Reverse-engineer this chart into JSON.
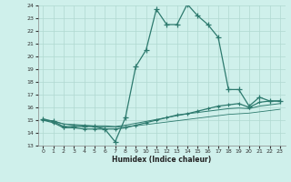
{
  "xlabel": "Humidex (Indice chaleur)",
  "xlim": [
    -0.5,
    23.5
  ],
  "ylim": [
    13,
    24
  ],
  "yticks": [
    13,
    14,
    15,
    16,
    17,
    18,
    19,
    20,
    21,
    22,
    23,
    24
  ],
  "xticks": [
    0,
    1,
    2,
    3,
    4,
    5,
    6,
    7,
    8,
    9,
    10,
    11,
    12,
    13,
    14,
    15,
    16,
    17,
    18,
    19,
    20,
    21,
    22,
    23
  ],
  "bg_color": "#cff0eb",
  "grid_color": "#b0d9d0",
  "line_color": "#2d7a6e",
  "line1_x": [
    0,
    1,
    2,
    3,
    4,
    5,
    6,
    7,
    8,
    9,
    10,
    11,
    12,
    13,
    14,
    15,
    16,
    17,
    18,
    19,
    20,
    21,
    22,
    23
  ],
  "line1_y": [
    15.1,
    14.9,
    14.5,
    14.5,
    14.5,
    14.5,
    14.3,
    13.3,
    15.2,
    19.2,
    20.5,
    23.7,
    22.5,
    22.5,
    24.1,
    23.2,
    22.5,
    21.5,
    17.4,
    17.4,
    16.1,
    16.8,
    16.5,
    16.5
  ],
  "line2_x": [
    0,
    1,
    2,
    3,
    4,
    5,
    6,
    7,
    8,
    9,
    10,
    11,
    12,
    13,
    14,
    15,
    16,
    17,
    18,
    19,
    20,
    21,
    22,
    23
  ],
  "line2_y": [
    15.0,
    14.8,
    14.4,
    14.4,
    14.3,
    14.3,
    14.3,
    14.3,
    14.4,
    14.6,
    14.8,
    15.0,
    15.2,
    15.4,
    15.5,
    15.7,
    15.9,
    16.1,
    16.2,
    16.3,
    16.0,
    16.4,
    16.5,
    16.5
  ],
  "line3_x": [
    0,
    1,
    2,
    3,
    4,
    5,
    6,
    7,
    8,
    9,
    10,
    11,
    12,
    13,
    14,
    15,
    16,
    17,
    18,
    19,
    20,
    21,
    22,
    23
  ],
  "line3_y": [
    15.0,
    14.95,
    14.7,
    14.65,
    14.6,
    14.55,
    14.55,
    14.5,
    14.6,
    14.75,
    14.9,
    15.05,
    15.2,
    15.35,
    15.5,
    15.6,
    15.7,
    15.8,
    15.9,
    15.95,
    15.9,
    16.1,
    16.2,
    16.3
  ],
  "line4_x": [
    0,
    1,
    2,
    3,
    4,
    5,
    6,
    7,
    8,
    9,
    10,
    11,
    12,
    13,
    14,
    15,
    16,
    17,
    18,
    19,
    20,
    21,
    22,
    23
  ],
  "line4_y": [
    15.0,
    14.9,
    14.7,
    14.6,
    14.55,
    14.5,
    14.45,
    14.45,
    14.5,
    14.55,
    14.65,
    14.75,
    14.85,
    14.95,
    15.05,
    15.15,
    15.25,
    15.35,
    15.45,
    15.5,
    15.55,
    15.65,
    15.75,
    15.85
  ]
}
